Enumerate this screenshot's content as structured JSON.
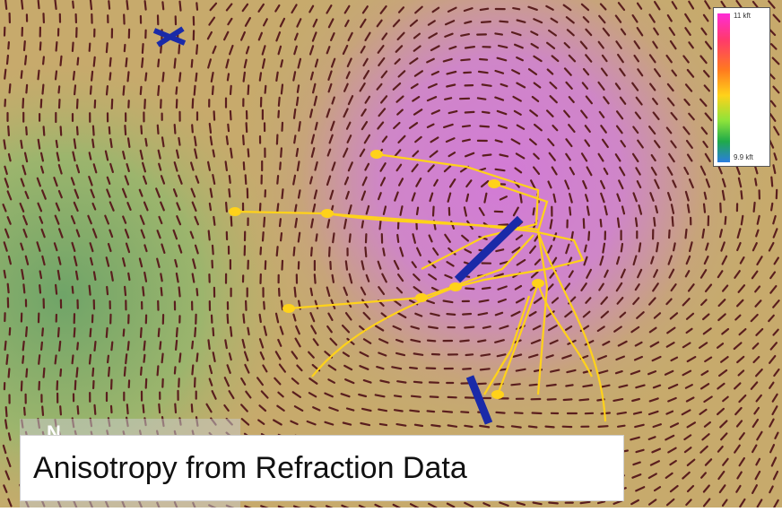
{
  "map": {
    "colors": {
      "low_terrain": "#7fae6a",
      "mid_terrain": "#c9a86a",
      "high_terrain": "#d27bd6",
      "tick_marks": "#5a1e1e",
      "survey_lines": "#ffd21a",
      "wells": "#1a2aa8"
    }
  },
  "legend": {
    "max_label": "11 kft",
    "min_label": "9.9 kft"
  },
  "compass": {
    "label": "N"
  },
  "caption": {
    "text": "Anisotropy from Refraction Data"
  }
}
